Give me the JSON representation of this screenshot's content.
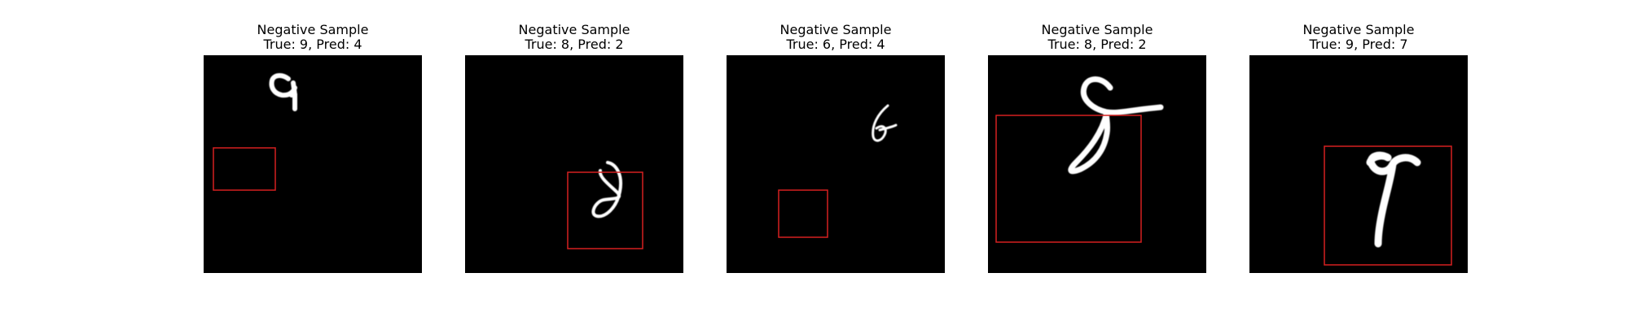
{
  "samples": [
    {
      "title": "Negative Sample",
      "subtitle": "True: 9, Pred: 4",
      "true_label": 9,
      "pred_label": 4
    },
    {
      "title": "Negative Sample",
      "subtitle": "True: 8, Pred: 2",
      "true_label": 8,
      "pred_label": 2
    },
    {
      "title": "Negative Sample",
      "subtitle": "True: 6, Pred: 4",
      "true_label": 6,
      "pred_label": 4
    },
    {
      "title": "Negative Sample",
      "subtitle": "True: 8, Pred: 2",
      "true_label": 8,
      "pred_label": 2
    },
    {
      "title": "Negative Sample",
      "subtitle": "True: 9, Pred: 7",
      "true_label": 9,
      "pred_label": 7
    }
  ],
  "colors": {
    "image_background": "#000000",
    "digit_stroke": "#ffffff",
    "bounding_box": "#d62020"
  }
}
